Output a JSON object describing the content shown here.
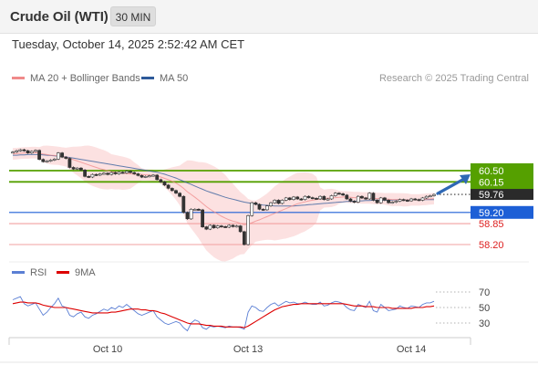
{
  "header": {
    "title": "Crude Oil (WTI)",
    "timeframe": "30 MIN"
  },
  "datetime": "Tuesday, October 14, 2025 2:52:42 AM CET",
  "legend": {
    "ma20": {
      "label": "MA 20 + Bollinger Bands",
      "color": "#f08a8a"
    },
    "ma50": {
      "label": "MA 50",
      "color": "#2e5a9a"
    }
  },
  "copyright": "Research © 2025 Trading Central",
  "rsi_legend": {
    "rsi": {
      "label": "RSI",
      "color": "#5b7fd4"
    },
    "ma": {
      "label": "9MA",
      "color": "#dd0000"
    }
  },
  "chart_data": {
    "type": "candlestick",
    "instrument": "Crude Oil (WTI)",
    "interval": "30 MIN",
    "x_ticks": [
      "Oct 10",
      "Oct 13",
      "Oct 14"
    ],
    "price_range": [
      57.8,
      61.4
    ],
    "last_price": 59.76,
    "forecast_arrow": {
      "from": 59.76,
      "to": 60.5
    },
    "levels": [
      {
        "value": "60.50",
        "kind": "resistance",
        "color": "#55a000"
      },
      {
        "value": "60.15",
        "kind": "resistance",
        "color": "#55a000"
      },
      {
        "value": "59.76",
        "kind": "last",
        "color": "#333333"
      },
      {
        "value": "59.20",
        "kind": "pivot",
        "color": "#1d5fd6"
      },
      {
        "value": "58.85",
        "kind": "support",
        "color": "#dd2020"
      },
      {
        "value": "58.20",
        "kind": "support",
        "color": "#dd2020"
      }
    ],
    "close": [
      61.08,
      61.12,
      61.15,
      61.12,
      61.05,
      61.1,
      61.13,
      60.85,
      60.78,
      60.8,
      60.83,
      60.86,
      61.05,
      60.92,
      60.88,
      60.6,
      60.55,
      60.58,
      60.52,
      60.32,
      60.3,
      60.38,
      60.36,
      60.4,
      60.42,
      60.38,
      60.44,
      60.4,
      60.45,
      60.43,
      60.48,
      60.44,
      60.4,
      60.35,
      60.3,
      60.32,
      60.34,
      60.36,
      60.22,
      60.15,
      60.05,
      59.95,
      59.88,
      59.8,
      59.7,
      59.2,
      59.0,
      59.3,
      59.3,
      59.28,
      58.75,
      58.68,
      58.8,
      58.72,
      58.78,
      58.76,
      58.74,
      58.8,
      58.76,
      58.78,
      58.6,
      58.2,
      59.1,
      59.5,
      59.45,
      59.3,
      59.28,
      59.4,
      59.5,
      59.58,
      59.48,
      59.58,
      59.65,
      59.6,
      59.68,
      59.62,
      59.6,
      59.7,
      59.66,
      59.64,
      59.62,
      59.7,
      59.6,
      59.62,
      59.72,
      59.8,
      59.78,
      59.74,
      59.62,
      59.55,
      59.52,
      59.7,
      59.65,
      59.62,
      59.8,
      59.58,
      59.5,
      59.65,
      59.58,
      59.5,
      59.52,
      59.55,
      59.6,
      59.58,
      59.56,
      59.62,
      59.6,
      59.58,
      59.65,
      59.7,
      59.72,
      59.76
    ],
    "ma20": [
      61.02,
      61.03,
      61.04,
      61.05,
      61.05,
      61.06,
      61.06,
      61.04,
      61.02,
      61.0,
      60.98,
      60.97,
      60.96,
      60.94,
      60.92,
      60.88,
      60.84,
      60.8,
      60.76,
      60.72,
      60.68,
      60.64,
      60.6,
      60.56,
      60.53,
      60.5,
      60.47,
      60.45,
      60.44,
      60.42,
      60.41,
      60.4,
      60.39,
      60.39,
      60.38,
      60.37,
      60.36,
      60.35,
      60.33,
      60.3,
      60.26,
      60.22,
      60.17,
      60.11,
      60.04,
      59.95,
      59.84,
      59.76,
      59.67,
      59.58,
      59.48,
      59.38,
      59.3,
      59.22,
      59.15,
      59.08,
      59.02,
      58.97,
      58.93,
      58.9,
      58.86,
      58.82,
      58.84,
      58.88,
      58.93,
      58.97,
      59.02,
      59.07,
      59.12,
      59.17,
      59.22,
      59.27,
      59.32,
      59.37,
      59.42,
      59.47,
      59.5,
      59.53,
      59.56,
      59.58,
      59.6,
      59.62,
      59.63,
      59.64,
      59.65,
      59.66,
      59.67,
      59.68,
      59.68,
      59.67,
      59.66,
      59.66,
      59.65,
      59.65,
      59.65,
      59.64,
      59.63,
      59.63,
      59.62,
      59.61,
      59.6,
      59.6,
      59.6,
      59.59,
      59.59,
      59.59,
      59.59,
      59.59,
      59.6,
      59.61,
      59.62,
      59.63
    ],
    "ma50": [
      60.98,
      60.98,
      60.99,
      60.99,
      61.0,
      61.0,
      61.0,
      61.0,
      60.99,
      60.98,
      60.97,
      60.96,
      60.95,
      60.94,
      60.93,
      60.91,
      60.89,
      60.87,
      60.85,
      60.83,
      60.81,
      60.79,
      60.77,
      60.75,
      60.73,
      60.71,
      60.69,
      60.67,
      60.65,
      60.63,
      60.61,
      60.59,
      60.57,
      60.55,
      60.53,
      60.51,
      60.49,
      60.47,
      60.45,
      60.42,
      60.39,
      60.35,
      60.31,
      60.27,
      60.22,
      60.17,
      60.12,
      60.07,
      60.02,
      59.97,
      59.92,
      59.87,
      59.83,
      59.79,
      59.75,
      59.71,
      59.67,
      59.64,
      59.61,
      59.58,
      59.55,
      59.52,
      59.5,
      59.48,
      59.46,
      59.44,
      59.43,
      59.42,
      59.41,
      59.4,
      59.4,
      59.4,
      59.4,
      59.4,
      59.4,
      59.41,
      59.42,
      59.43,
      59.44,
      59.45,
      59.46,
      59.47,
      59.48,
      59.49,
      59.5,
      59.51,
      59.52,
      59.53,
      59.54,
      59.54,
      59.55,
      59.56,
      59.56,
      59.57,
      59.57,
      59.58,
      59.58,
      59.58,
      59.58,
      59.58,
      59.58,
      59.59,
      59.59,
      59.59,
      59.59,
      59.59,
      59.59,
      59.59,
      59.6,
      59.6,
      59.6,
      59.6
    ],
    "rsi_panel": {
      "range": [
        0,
        100
      ],
      "y_ticks": [
        "70",
        "50",
        "30"
      ],
      "rsi": [
        60,
        62,
        64,
        55,
        52,
        54,
        56,
        48,
        40,
        44,
        50,
        55,
        62,
        52,
        50,
        40,
        38,
        42,
        44,
        38,
        36,
        40,
        42,
        45,
        48,
        46,
        50,
        48,
        52,
        50,
        54,
        50,
        46,
        42,
        40,
        42,
        44,
        46,
        38,
        34,
        30,
        28,
        30,
        32,
        30,
        24,
        20,
        30,
        34,
        32,
        24,
        22,
        26,
        25,
        26,
        25,
        24,
        26,
        25,
        25,
        24,
        22,
        44,
        52,
        50,
        46,
        45,
        50,
        54,
        56,
        52,
        55,
        58,
        56,
        57,
        55,
        55,
        57,
        55,
        54,
        54,
        57,
        52,
        53,
        56,
        58,
        57,
        55,
        50,
        47,
        46,
        54,
        52,
        50,
        58,
        46,
        44,
        54,
        50,
        46,
        47,
        48,
        52,
        50,
        49,
        52,
        51,
        50,
        54,
        56,
        56,
        58
      ],
      "ma9": [
        55,
        56,
        57,
        57,
        56,
        56,
        56,
        55,
        53,
        52,
        51,
        50,
        50,
        50,
        50,
        49,
        48,
        47,
        46,
        45,
        44,
        43,
        43,
        43,
        43,
        43,
        44,
        44,
        45,
        46,
        47,
        48,
        48,
        48,
        47,
        47,
        46,
        46,
        45,
        43,
        42,
        40,
        38,
        36,
        34,
        32,
        30,
        29,
        29,
        29,
        28,
        27,
        27,
        26,
        26,
        26,
        25,
        25,
        25,
        25,
        25,
        24,
        26,
        29,
        32,
        35,
        38,
        41,
        44,
        47,
        49,
        51,
        52,
        53,
        54,
        54,
        55,
        55,
        55,
        55,
        55,
        55,
        55,
        55,
        55,
        55,
        55,
        55,
        54,
        53,
        52,
        52,
        52,
        51,
        51,
        51,
        50,
        50,
        50,
        50,
        49,
        49,
        49,
        49,
        49,
        49,
        50,
        50,
        50,
        51,
        51,
        52
      ]
    }
  }
}
